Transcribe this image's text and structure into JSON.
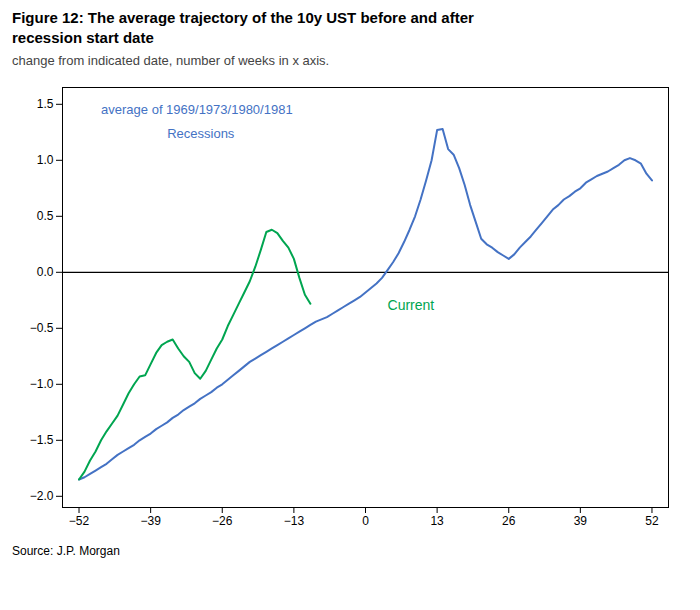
{
  "chart_data": {
    "type": "line",
    "title": "Figure 12: The average trajectory of the 10y UST before and after\nrecession start date",
    "subtitle": "change from indicated date, number of weeks in x axis.",
    "source": "Source: J.P. Morgan",
    "xlim": [
      -55,
      55
    ],
    "ylim": [
      -2.1,
      1.65
    ],
    "xticks": [
      -52,
      -39,
      -26,
      -13,
      0,
      13,
      26,
      39,
      52
    ],
    "yticks": [
      {
        "value": -2.0,
        "label": "−2.0"
      },
      -1.5,
      {
        "value": -1.0,
        "label": "−1.0"
      },
      -0.5,
      {
        "value": 0.0,
        "label": "0.0"
      },
      0.5,
      {
        "value": 1.0,
        "label": "1.0"
      },
      1.5
    ],
    "series": [
      {
        "color": "#4472C4",
        "x": [
          -52,
          -51,
          -50,
          -49,
          -48,
          -47,
          -46,
          -45,
          -44,
          -43,
          -42,
          -41,
          -40,
          -39,
          -38,
          -37,
          -36,
          -35,
          -34,
          -33,
          -32,
          -31,
          -30,
          -29,
          -28,
          -27,
          -26,
          -25,
          -24,
          -23,
          -22,
          -21,
          -20,
          -19,
          -18,
          -17,
          -16,
          -15,
          -14,
          -13,
          -12,
          -11,
          -10,
          -9,
          -8,
          -7,
          -6,
          -5,
          -4,
          -3,
          -2,
          -1,
          0,
          1,
          2,
          3,
          4,
          5,
          6,
          7,
          8,
          9,
          10,
          11,
          12,
          13,
          14,
          15,
          16,
          17,
          18,
          19,
          20,
          21,
          22,
          23,
          24,
          25,
          26,
          27,
          28,
          29,
          30,
          31,
          32,
          33,
          34,
          35,
          36,
          37,
          38,
          39,
          40,
          41,
          42,
          43,
          44,
          45,
          46,
          47,
          48,
          49,
          50,
          51,
          52
        ],
        "values": [
          -1.85,
          -1.83,
          -1.8,
          -1.77,
          -1.74,
          -1.71,
          -1.67,
          -1.63,
          -1.6,
          -1.57,
          -1.54,
          -1.5,
          -1.47,
          -1.44,
          -1.4,
          -1.37,
          -1.34,
          -1.3,
          -1.27,
          -1.23,
          -1.2,
          -1.17,
          -1.13,
          -1.1,
          -1.07,
          -1.03,
          -1.0,
          -0.96,
          -0.92,
          -0.88,
          -0.84,
          -0.8,
          -0.77,
          -0.74,
          -0.71,
          -0.68,
          -0.65,
          -0.62,
          -0.59,
          -0.56,
          -0.53,
          -0.5,
          -0.47,
          -0.44,
          -0.42,
          -0.4,
          -0.37,
          -0.34,
          -0.31,
          -0.28,
          -0.25,
          -0.22,
          -0.18,
          -0.14,
          -0.1,
          -0.05,
          0.02,
          0.09,
          0.17,
          0.27,
          0.38,
          0.5,
          0.65,
          0.82,
          1.0,
          1.27,
          1.28,
          1.1,
          1.05,
          0.93,
          0.78,
          0.6,
          0.45,
          0.3,
          0.25,
          0.22,
          0.18,
          0.15,
          0.12,
          0.16,
          0.22,
          0.27,
          0.32,
          0.38,
          0.44,
          0.5,
          0.56,
          0.6,
          0.65,
          0.68,
          0.72,
          0.75,
          0.8,
          0.83,
          0.86,
          0.88,
          0.9,
          0.93,
          0.96,
          1.0,
          1.02,
          1.0,
          0.97,
          0.88,
          0.82
        ]
      },
      {
        "color": "#00A550",
        "x": [
          -52,
          -51,
          -50,
          -49,
          -48,
          -47,
          -46,
          -45,
          -44,
          -43,
          -42,
          -41,
          -40,
          -39,
          -38,
          -37,
          -36,
          -35,
          -34,
          -33,
          -32,
          -31,
          -30,
          -29,
          -28,
          -27,
          -26,
          -25,
          -24,
          -23,
          -22,
          -21,
          -20,
          -19,
          -18,
          -17,
          -16,
          -15,
          -14,
          -13,
          -12,
          -11,
          -10
        ],
        "values": [
          -1.85,
          -1.78,
          -1.68,
          -1.6,
          -1.5,
          -1.42,
          -1.35,
          -1.28,
          -1.18,
          -1.08,
          -1.0,
          -0.93,
          -0.92,
          -0.82,
          -0.72,
          -0.65,
          -0.62,
          -0.6,
          -0.68,
          -0.75,
          -0.8,
          -0.9,
          -0.95,
          -0.88,
          -0.78,
          -0.68,
          -0.6,
          -0.48,
          -0.38,
          -0.28,
          -0.18,
          -0.08,
          0.05,
          0.2,
          0.36,
          0.38,
          0.35,
          0.28,
          0.22,
          0.12,
          -0.05,
          -0.2,
          -0.28
        ]
      }
    ],
    "annotations": [
      {
        "text": "average of 1969/1973/1980/1981",
        "x": -48,
        "y": 1.5,
        "color": "#4472C4"
      },
      {
        "text": "Recessions",
        "x": -36,
        "y": 1.28,
        "color": "#4472C4"
      },
      {
        "text": "Current",
        "x": 4,
        "y": -0.3,
        "color": "#00A550"
      }
    ]
  }
}
